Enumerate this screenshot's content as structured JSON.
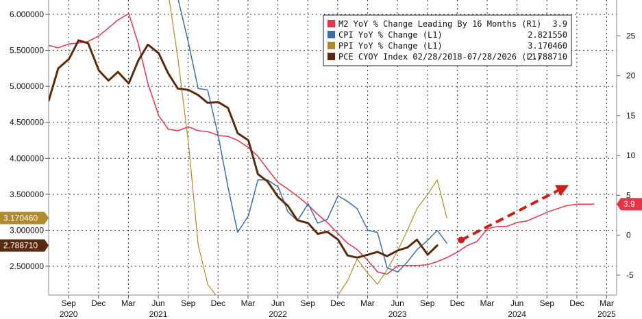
{
  "chart_data": {
    "type": "line",
    "xlabel": "",
    "ylabel": "",
    "x_tick_labels": [
      {
        "month": "Sep",
        "year": "2020",
        "t": 2020.667
      },
      {
        "month": "Dec",
        "year": "",
        "t": 2020.917
      },
      {
        "month": "Mar",
        "year": "",
        "t": 2021.167
      },
      {
        "month": "Jun",
        "year": "2021",
        "t": 2021.417
      },
      {
        "month": "Sep",
        "year": "",
        "t": 2021.667
      },
      {
        "month": "Dec",
        "year": "",
        "t": 2021.917
      },
      {
        "month": "Mar",
        "year": "",
        "t": 2022.167
      },
      {
        "month": "Jun",
        "year": "2022",
        "t": 2022.417
      },
      {
        "month": "Sep",
        "year": "",
        "t": 2022.667
      },
      {
        "month": "Dec",
        "year": "",
        "t": 2022.917
      },
      {
        "month": "Mar",
        "year": "",
        "t": 2023.167
      },
      {
        "month": "Jun",
        "year": "2023",
        "t": 2023.417
      },
      {
        "month": "Sep",
        "year": "",
        "t": 2023.667
      },
      {
        "month": "Dec",
        "year": "",
        "t": 2023.917
      },
      {
        "month": "Mar",
        "year": "",
        "t": 2024.167
      },
      {
        "month": "Jun",
        "year": "2024",
        "t": 2024.417
      },
      {
        "month": "Sep",
        "year": "",
        "t": 2024.667
      },
      {
        "month": "Dec",
        "year": "",
        "t": 2024.917
      },
      {
        "month": "Mar",
        "year": "2025",
        "t": 2025.167
      }
    ],
    "xlim": [
      2020.5,
      2025.25
    ],
    "left_axis": {
      "ticks": [
        "2.500000",
        "3.000000",
        "3.500000",
        "4.000000",
        "4.500000",
        "5.000000",
        "5.500000",
        "6.000000"
      ],
      "ylim": [
        2.1,
        6.2
      ]
    },
    "right_axis": {
      "ticks": [
        "-5",
        "0",
        "5",
        "10",
        "15",
        "20",
        "25"
      ],
      "ylim": [
        -7.5,
        29.5
      ]
    },
    "grid": true,
    "legend_position": "top-right",
    "series": [
      {
        "name": "M2 YoY % Change Leading By 16 Months (R1)",
        "last": "3.9",
        "axis": "right",
        "color": "#e8334a",
        "points": [
          [
            2020.5,
            23.8
          ],
          [
            2020.58,
            23.5
          ],
          [
            2020.67,
            24.0
          ],
          [
            2020.75,
            24.1
          ],
          [
            2020.83,
            24.3
          ],
          [
            2020.92,
            25.0
          ],
          [
            2021.0,
            26.0
          ],
          [
            2021.08,
            27.0
          ],
          [
            2021.17,
            27.8
          ],
          [
            2021.25,
            24.0
          ],
          [
            2021.33,
            19.0
          ],
          [
            2021.42,
            15.0
          ],
          [
            2021.5,
            13.3
          ],
          [
            2021.58,
            13.1
          ],
          [
            2021.67,
            13.6
          ],
          [
            2021.75,
            13.1
          ],
          [
            2021.83,
            13.0
          ],
          [
            2021.92,
            12.5
          ],
          [
            2022.0,
            12.4
          ],
          [
            2022.08,
            11.9
          ],
          [
            2022.17,
            11.0
          ],
          [
            2022.25,
            9.9
          ],
          [
            2022.33,
            8.3
          ],
          [
            2022.42,
            6.6
          ],
          [
            2022.5,
            5.8
          ],
          [
            2022.58,
            4.9
          ],
          [
            2022.67,
            3.8
          ],
          [
            2022.75,
            2.6
          ],
          [
            2022.83,
            1.6
          ],
          [
            2022.92,
            0.2
          ],
          [
            2023.0,
            -1.0
          ],
          [
            2023.08,
            -1.8
          ],
          [
            2023.17,
            -3.2
          ],
          [
            2023.25,
            -4.6
          ],
          [
            2023.33,
            -4.9
          ],
          [
            2023.42,
            -3.8
          ],
          [
            2023.5,
            -3.8
          ],
          [
            2023.58,
            -3.8
          ],
          [
            2023.67,
            -3.7
          ],
          [
            2023.75,
            -3.3
          ],
          [
            2023.83,
            -2.8
          ],
          [
            2023.92,
            -2.1
          ],
          [
            2024.0,
            -1.3
          ],
          [
            2024.08,
            -0.8
          ],
          [
            2024.17,
            0.8
          ],
          [
            2024.25,
            1.1
          ],
          [
            2024.33,
            1.1
          ],
          [
            2024.42,
            1.6
          ],
          [
            2024.5,
            1.8
          ],
          [
            2024.58,
            2.3
          ],
          [
            2024.67,
            2.9
          ],
          [
            2024.75,
            3.3
          ],
          [
            2024.83,
            3.7
          ],
          [
            2024.92,
            3.9
          ],
          [
            2025.0,
            3.9
          ],
          [
            2025.06,
            3.9
          ]
        ]
      },
      {
        "name": "CPI YoY % Change (L1)",
        "last": "2.821550",
        "axis": "left",
        "color": "#3a6fa8",
        "points": [
          [
            2021.58,
            6.23
          ],
          [
            2021.67,
            5.6
          ],
          [
            2021.75,
            4.97
          ],
          [
            2021.83,
            4.95
          ],
          [
            2021.92,
            4.3
          ],
          [
            2022.0,
            3.6
          ],
          [
            2022.08,
            2.97
          ],
          [
            2022.17,
            3.2
          ],
          [
            2022.25,
            3.7
          ],
          [
            2022.33,
            3.7
          ],
          [
            2022.42,
            3.6
          ],
          [
            2022.5,
            3.26
          ],
          [
            2022.58,
            3.13
          ],
          [
            2022.67,
            3.37
          ],
          [
            2022.75,
            3.1
          ],
          [
            2022.83,
            3.15
          ],
          [
            2022.92,
            3.48
          ],
          [
            2023.0,
            3.4
          ],
          [
            2023.08,
            3.3
          ],
          [
            2023.17,
            3.0
          ],
          [
            2023.25,
            2.97
          ],
          [
            2023.33,
            2.48
          ],
          [
            2023.42,
            2.42
          ],
          [
            2023.5,
            2.56
          ],
          [
            2023.58,
            2.73
          ],
          [
            2023.67,
            2.86
          ],
          [
            2023.75,
            3.0
          ],
          [
            2023.83,
            2.82
          ]
        ]
      },
      {
        "name": "PPI YoY % Change (L1)",
        "last": "3.170460",
        "axis": "left",
        "color": "#b08a2e",
        "points": [
          [
            2021.5,
            6.3
          ],
          [
            2021.58,
            5.4
          ],
          [
            2021.67,
            4.2
          ],
          [
            2021.75,
            2.8
          ],
          [
            2021.83,
            2.25
          ],
          [
            2021.92,
            2.05
          ],
          [
            2021.93,
            1.9
          ],
          [
            2022.9,
            1.9
          ],
          [
            2022.92,
            2.1
          ],
          [
            2023.0,
            2.3
          ],
          [
            2023.08,
            2.6
          ],
          [
            2023.17,
            2.4
          ],
          [
            2023.25,
            2.25
          ],
          [
            2023.33,
            2.45
          ],
          [
            2023.42,
            2.72
          ],
          [
            2023.5,
            3.0
          ],
          [
            2023.58,
            3.3
          ],
          [
            2023.67,
            3.5
          ],
          [
            2023.75,
            3.7
          ],
          [
            2023.83,
            3.17
          ]
        ]
      },
      {
        "name": "PCE CYOY Index 02/28/2018-07/28/2026 (L1)",
        "last": "2.788710",
        "axis": "left",
        "color": "#5a2a0e",
        "points": [
          [
            2020.5,
            4.8
          ],
          [
            2020.58,
            5.25
          ],
          [
            2020.67,
            5.38
          ],
          [
            2020.75,
            5.64
          ],
          [
            2020.83,
            5.6
          ],
          [
            2020.92,
            5.22
          ],
          [
            2021.0,
            5.08
          ],
          [
            2021.08,
            5.2
          ],
          [
            2021.17,
            5.04
          ],
          [
            2021.25,
            5.36
          ],
          [
            2021.33,
            5.58
          ],
          [
            2021.42,
            5.46
          ],
          [
            2021.5,
            5.18
          ],
          [
            2021.58,
            4.97
          ],
          [
            2021.67,
            4.95
          ],
          [
            2021.75,
            4.88
          ],
          [
            2021.83,
            4.77
          ],
          [
            2021.92,
            4.78
          ],
          [
            2022.0,
            4.7
          ],
          [
            2022.08,
            4.35
          ],
          [
            2022.17,
            4.25
          ],
          [
            2022.25,
            3.78
          ],
          [
            2022.33,
            3.68
          ],
          [
            2022.42,
            3.46
          ],
          [
            2022.5,
            3.34
          ],
          [
            2022.58,
            3.14
          ],
          [
            2022.67,
            3.1
          ],
          [
            2022.75,
            2.95
          ],
          [
            2022.83,
            2.98
          ],
          [
            2022.92,
            2.87
          ],
          [
            2023.0,
            2.65
          ],
          [
            2023.08,
            2.62
          ],
          [
            2023.17,
            2.66
          ],
          [
            2023.25,
            2.7
          ],
          [
            2023.33,
            2.64
          ],
          [
            2023.42,
            2.72
          ],
          [
            2023.5,
            2.76
          ],
          [
            2023.58,
            2.87
          ],
          [
            2023.67,
            2.66
          ],
          [
            2023.75,
            2.79
          ]
        ]
      }
    ],
    "annotation_arrow": {
      "color": "#cc1f1a",
      "from": [
        2023.95,
        -0.6
      ],
      "to": [
        2024.85,
        6.3
      ]
    }
  }
}
